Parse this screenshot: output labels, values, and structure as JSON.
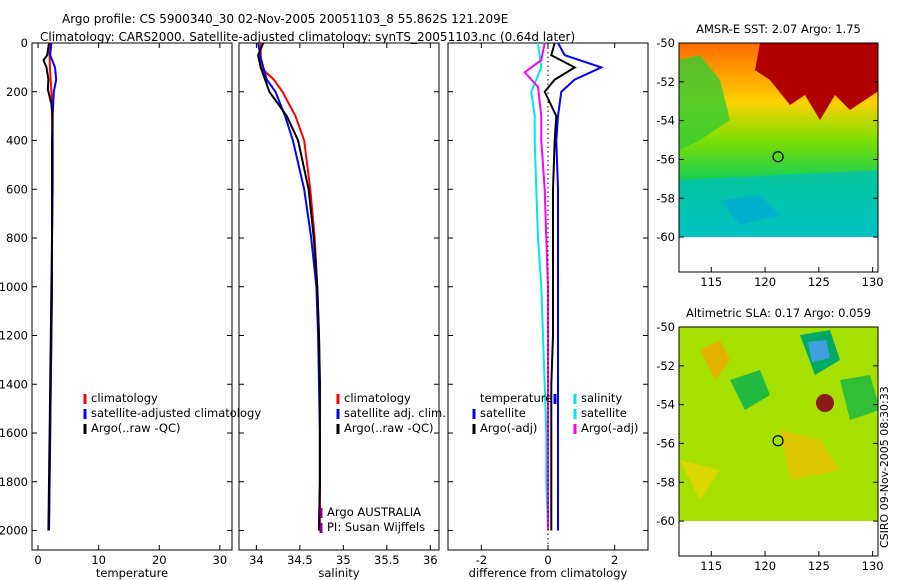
{
  "title_line1": "Argo profile: CS 5900340_30 02-Nov-2005 20051103_8 55.862S 121.209E",
  "title_line2": "Climatology: CARS2000. Satellite-adjusted climatology: synTS_20051103.nc (0.64d later)",
  "watermark": "CSIRO 09-Nov-2005 08:30:33",
  "colors": {
    "clim": "#ff0000",
    "sat": "#0000ff",
    "argo": "#000000",
    "sal_sat": "#00e5e5",
    "sal_argo": "#ff00ff"
  },
  "chart_data": [
    {
      "type": "line",
      "xlabel": "temperature",
      "ylabel": "",
      "xlim": [
        -1,
        32
      ],
      "ylim": [
        2080,
        0
      ],
      "xticks": [
        0,
        10,
        20,
        30
      ],
      "yticks": [
        0,
        200,
        400,
        600,
        800,
        1000,
        1200,
        1400,
        1600,
        1800,
        2000
      ],
      "legend": [
        "climatology",
        "satellite-adjusted climatology",
        "Argo(..raw -QC)"
      ],
      "series": [
        {
          "name": "climatology",
          "color": "clim",
          "points": [
            [
              1.9,
              0
            ],
            [
              1.9,
              60
            ],
            [
              2.0,
              120
            ],
            [
              2.2,
              200
            ],
            [
              2.3,
              300
            ],
            [
              2.4,
              400
            ],
            [
              2.4,
              600
            ],
            [
              2.3,
              800
            ],
            [
              2.3,
              1000
            ],
            [
              2.2,
              1200
            ],
            [
              2.1,
              1400
            ],
            [
              2.0,
              1600
            ],
            [
              1.9,
              1800
            ],
            [
              1.8,
              2000
            ]
          ]
        },
        {
          "name": "satellite-adjusted climatology",
          "color": "sat",
          "points": [
            [
              2.2,
              0
            ],
            [
              2.0,
              50
            ],
            [
              2.8,
              100
            ],
            [
              3.0,
              150
            ],
            [
              2.6,
              200
            ],
            [
              2.4,
              300
            ],
            [
              2.4,
              400
            ],
            [
              2.4,
              600
            ],
            [
              2.3,
              800
            ],
            [
              2.3,
              1000
            ],
            [
              2.2,
              1200
            ],
            [
              2.1,
              1400
            ],
            [
              2.0,
              1600
            ],
            [
              1.9,
              1800
            ],
            [
              1.8,
              2000
            ]
          ]
        },
        {
          "name": "Argo(..raw -QC)",
          "color": "argo",
          "points": [
            [
              1.8,
              0
            ],
            [
              1.5,
              50
            ],
            [
              0.9,
              70
            ],
            [
              1.4,
              100
            ],
            [
              1.7,
              150
            ],
            [
              1.6,
              190
            ],
            [
              2.2,
              250
            ],
            [
              2.4,
              300
            ],
            [
              2.3,
              400
            ],
            [
              2.3,
              600
            ],
            [
              2.3,
              800
            ],
            [
              2.2,
              1000
            ],
            [
              2.1,
              1200
            ],
            [
              2.0,
              1400
            ],
            [
              1.9,
              1600
            ],
            [
              1.8,
              1800
            ],
            [
              1.7,
              2000
            ]
          ]
        }
      ]
    },
    {
      "type": "line",
      "xlabel": "salinity",
      "ylabel": "",
      "xlim": [
        33.8,
        36.1
      ],
      "ylim": [
        2080,
        0
      ],
      "xticks": [
        34,
        34.5,
        35,
        35.5,
        36
      ],
      "legend": [
        "climatology",
        "satellite adj. clim.",
        "Argo(..raw -QC)"
      ],
      "annotation": [
        "Argo AUSTRALIA",
        "PI: Susan Wijffels"
      ],
      "series": [
        {
          "name": "climatology",
          "color": "clim",
          "points": [
            [
              34.05,
              0
            ],
            [
              34.05,
              50
            ],
            [
              34.05,
              100
            ],
            [
              34.2,
              150
            ],
            [
              34.3,
              200
            ],
            [
              34.45,
              300
            ],
            [
              34.55,
              400
            ],
            [
              34.62,
              600
            ],
            [
              34.67,
              800
            ],
            [
              34.7,
              1000
            ],
            [
              34.72,
              1200
            ],
            [
              34.73,
              1400
            ],
            [
              34.73,
              1600
            ],
            [
              34.73,
              1800
            ],
            [
              34.73,
              2000
            ]
          ]
        },
        {
          "name": "satellite adj. clim.",
          "color": "sat",
          "points": [
            [
              34.02,
              0
            ],
            [
              34.05,
              60
            ],
            [
              34.08,
              100
            ],
            [
              34.12,
              150
            ],
            [
              34.22,
              200
            ],
            [
              34.33,
              300
            ],
            [
              34.42,
              400
            ],
            [
              34.55,
              600
            ],
            [
              34.63,
              800
            ],
            [
              34.69,
              1000
            ],
            [
              34.71,
              1200
            ],
            [
              34.72,
              1400
            ],
            [
              34.73,
              1600
            ],
            [
              34.73,
              1800
            ],
            [
              34.72,
              2000
            ]
          ]
        },
        {
          "name": "Argo(..raw -QC)",
          "color": "argo",
          "points": [
            [
              34.08,
              0
            ],
            [
              34.02,
              50
            ],
            [
              34.05,
              100
            ],
            [
              34.1,
              150
            ],
            [
              34.15,
              200
            ],
            [
              34.35,
              300
            ],
            [
              34.48,
              400
            ],
            [
              34.6,
              600
            ],
            [
              34.66,
              800
            ],
            [
              34.7,
              1000
            ],
            [
              34.72,
              1200
            ],
            [
              34.73,
              1400
            ],
            [
              34.73,
              1600
            ],
            [
              34.73,
              1800
            ],
            [
              34.72,
              2000
            ]
          ]
        }
      ]
    },
    {
      "type": "line",
      "xlabel": "difference from climatology",
      "ylabel": "",
      "xlim": [
        -3,
        3
      ],
      "ylim": [
        2080,
        0
      ],
      "xticks": [
        -2,
        0,
        2
      ],
      "legend_temperature": {
        "title": "temperature",
        "items": [
          "satellite",
          "Argo(-adj)"
        ]
      },
      "legend_salinity": {
        "title": "salinity",
        "items": [
          "satellite",
          "Argo(-adj)"
        ]
      },
      "series": [
        {
          "name": "satellite",
          "group": "temperature",
          "color": "sat",
          "points": [
            [
              0.3,
              0
            ],
            [
              0.5,
              50
            ],
            [
              1.6,
              100
            ],
            [
              0.8,
              150
            ],
            [
              0.4,
              200
            ],
            [
              0.3,
              300
            ],
            [
              0.25,
              400
            ],
            [
              0.3,
              600
            ],
            [
              0.3,
              800
            ],
            [
              0.3,
              1000
            ],
            [
              0.3,
              1200
            ],
            [
              0.3,
              1400
            ],
            [
              0.3,
              1600
            ],
            [
              0.3,
              1800
            ],
            [
              0.3,
              2000
            ]
          ]
        },
        {
          "name": "Argo(-adj)",
          "group": "temperature",
          "color": "argo",
          "points": [
            [
              0.2,
              0
            ],
            [
              0.1,
              50
            ],
            [
              0.8,
              100
            ],
            [
              0.2,
              150
            ],
            [
              -0.1,
              200
            ],
            [
              0.25,
              300
            ],
            [
              0.2,
              400
            ],
            [
              0.15,
              600
            ],
            [
              0.15,
              800
            ],
            [
              0.15,
              1000
            ],
            [
              0.15,
              1200
            ],
            [
              0.1,
              1400
            ],
            [
              0.1,
              1600
            ],
            [
              0.1,
              1800
            ],
            [
              0.1,
              2000
            ]
          ]
        },
        {
          "name": "satellite",
          "group": "salinity",
          "color": "sal_sat",
          "points": [
            [
              -0.3,
              0
            ],
            [
              -0.2,
              100
            ],
            [
              -0.5,
              200
            ],
            [
              -0.4,
              300
            ],
            [
              -0.4,
              400
            ],
            [
              -0.35,
              600
            ],
            [
              -0.3,
              800
            ],
            [
              -0.2,
              1000
            ],
            [
              -0.15,
              1200
            ],
            [
              -0.1,
              1400
            ],
            [
              -0.05,
              1600
            ],
            [
              -0.05,
              1800
            ],
            [
              0.0,
              2000
            ]
          ]
        },
        {
          "name": "Argo(-adj)",
          "group": "salinity",
          "color": "sal_argo",
          "points": [
            [
              -0.1,
              0
            ],
            [
              -0.2,
              70
            ],
            [
              -0.7,
              120
            ],
            [
              -0.3,
              180
            ],
            [
              -0.2,
              300
            ],
            [
              -0.2,
              400
            ],
            [
              -0.1,
              600
            ],
            [
              -0.05,
              800
            ],
            [
              0.0,
              1000
            ],
            [
              0.0,
              1200
            ],
            [
              0.0,
              1400
            ],
            [
              0.0,
              1600
            ],
            [
              0.0,
              1800
            ],
            [
              0.0,
              2000
            ]
          ]
        }
      ]
    },
    {
      "type": "heatmap",
      "title": "AMSR-E SST: 2.07 Argo: 1.75",
      "xlim": [
        112,
        130.5
      ],
      "ylim": [
        -61.8,
        -50
      ],
      "xticks": [
        115,
        120,
        125,
        130
      ],
      "yticks": [
        -50,
        -52,
        -54,
        -56,
        -58,
        -60
      ],
      "data_extent_lat": [
        -60,
        -50
      ],
      "marker": {
        "lon": 121.209,
        "lat": -55.862
      }
    },
    {
      "type": "heatmap",
      "title": "Altimetric SLA: 0.17 Argo: 0.059",
      "xlim": [
        112,
        130.5
      ],
      "ylim": [
        -61.8,
        -50
      ],
      "xticks": [
        115,
        120,
        125,
        130
      ],
      "yticks": [
        -50,
        -52,
        -54,
        -56,
        -58,
        -60
      ],
      "data_extent_lat": [
        -60,
        -50
      ],
      "marker": {
        "lon": 121.209,
        "lat": -55.862
      }
    }
  ]
}
